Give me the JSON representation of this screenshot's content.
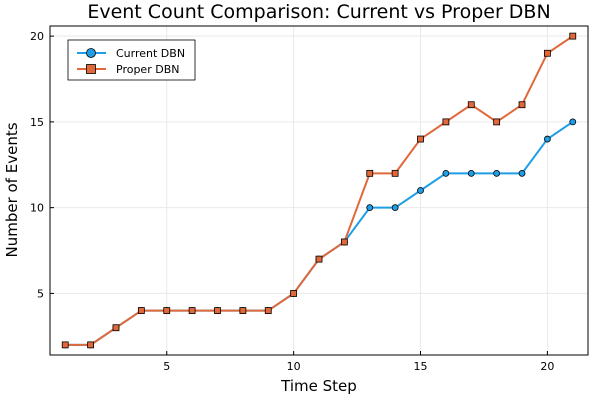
{
  "chart_data": {
    "type": "line",
    "title": "Event Count Comparison: Current vs Proper DBN",
    "xlabel": "Time Step",
    "ylabel": "Number of Events",
    "xlim": [
      0.4,
      21.6
    ],
    "ylim": [
      1.41,
      20.59
    ],
    "xticks": [
      5,
      10,
      15,
      20
    ],
    "yticks": [
      5,
      10,
      15,
      20
    ],
    "grid": true,
    "legend_position": "top-left",
    "x": [
      1,
      2,
      3,
      4,
      5,
      6,
      7,
      8,
      9,
      10,
      11,
      12,
      13,
      14,
      15,
      16,
      17,
      18,
      19,
      20,
      21
    ],
    "series": [
      {
        "name": "Current DBN",
        "color": "#1f9ee6",
        "marker": "circle",
        "values": [
          2,
          2,
          3,
          4,
          4,
          4,
          4,
          4,
          4,
          5,
          7,
          8,
          10,
          10,
          11,
          12,
          12,
          12,
          12,
          14,
          15
        ]
      },
      {
        "name": "Proper DBN",
        "color": "#e0683a",
        "marker": "square",
        "values": [
          2,
          2,
          3,
          4,
          4,
          4,
          4,
          4,
          4,
          5,
          7,
          8,
          12,
          12,
          14,
          15,
          16,
          15,
          16,
          19,
          20
        ]
      }
    ]
  }
}
